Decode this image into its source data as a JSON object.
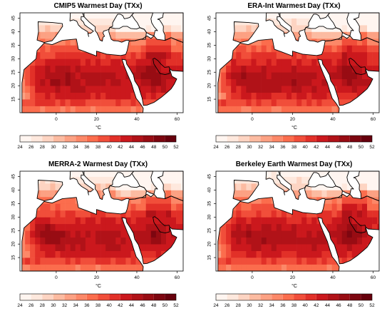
{
  "panels": [
    {
      "title": "CMIP5 Warmest Day (TXx)",
      "variant": 0
    },
    {
      "title": "ERA-Int Warmest Day (TXx)",
      "variant": 1
    },
    {
      "title": "MERRA-2 Warmest Day (TXx)",
      "variant": 2
    },
    {
      "title": "Berkeley Earth Warmest Day (TXx)",
      "variant": 3
    }
  ],
  "y_ticks": [
    "15",
    "20",
    "25",
    "30",
    "35",
    "40",
    "45"
  ],
  "x_ticks": [
    "0",
    "20",
    "40",
    "60"
  ],
  "unit": "°C",
  "colorbar": {
    "ticks": [
      "24",
      "26",
      "28",
      "30",
      "32",
      "34",
      "36",
      "38",
      "40",
      "42",
      "44",
      "46",
      "48",
      "50",
      "52"
    ],
    "colors": [
      "#fff5f0",
      "#fee8dd",
      "#fdd4c2",
      "#fcbba1",
      "#fca183",
      "#fc8868",
      "#fb6d4d",
      "#f14e3a",
      "#e23028",
      "#cb181d",
      "#b11218",
      "#980c13",
      "#7d0610",
      "#67000d"
    ]
  }
}
